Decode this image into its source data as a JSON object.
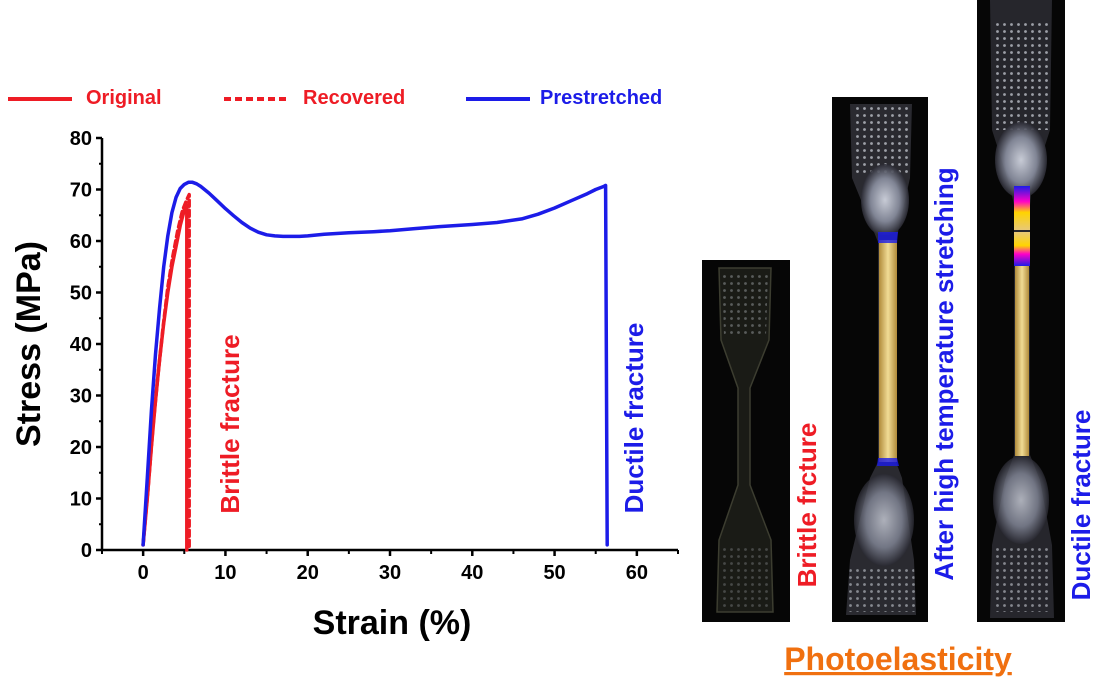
{
  "colors": {
    "original": "#ee1c25",
    "recovered": "#ee1c25",
    "prestretched": "#1c1ce8",
    "photo_caption": "#f07010",
    "photo_bg": "#060606"
  },
  "chart_data": {
    "type": "line",
    "xlabel": "Strain (%)",
    "ylabel": "Stress (MPa)",
    "xlim": [
      -5,
      65
    ],
    "ylim": [
      0,
      80
    ],
    "xticks": [
      0,
      10,
      20,
      30,
      40,
      50,
      60
    ],
    "yticks": [
      0,
      10,
      20,
      30,
      40,
      50,
      60,
      70,
      80
    ],
    "legend_position": "top",
    "series": [
      {
        "name": "Original",
        "style": "solid",
        "x": [
          0,
          0.5,
          1,
          1.5,
          2,
          2.5,
          3,
          3.5,
          4,
          4.5,
          5,
          5.3,
          5.3
        ],
        "y": [
          1,
          10,
          20,
          29,
          37,
          44,
          50,
          55,
          59,
          63,
          66,
          67,
          0
        ]
      },
      {
        "name": "Recovered",
        "style": "dashed",
        "x": [
          0,
          0.6,
          1.2,
          1.8,
          2.4,
          3,
          3.6,
          4.2,
          4.8,
          5.3,
          5.6,
          5.6
        ],
        "y": [
          1,
          12,
          24,
          34,
          43,
          51,
          57,
          62,
          66,
          68,
          69,
          0
        ]
      },
      {
        "name": "Prestretched",
        "style": "solid",
        "x": [
          0,
          0.5,
          1,
          1.5,
          2,
          2.5,
          3,
          3.5,
          4,
          4.5,
          5,
          5.5,
          6,
          6.5,
          7,
          8,
          9,
          10,
          11,
          12,
          13,
          14,
          15,
          16,
          17,
          18,
          19,
          20,
          22,
          25,
          28,
          30,
          33,
          36,
          40,
          43,
          46,
          48,
          50,
          52,
          54,
          55,
          56,
          56.2,
          56.4
        ],
        "y": [
          1,
          14,
          27,
          38,
          47,
          55,
          61,
          65.5,
          68.5,
          70.2,
          71,
          71.4,
          71.4,
          71.1,
          70.6,
          69.3,
          67.8,
          66.3,
          64.9,
          63.6,
          62.5,
          61.7,
          61.2,
          61,
          60.9,
          60.9,
          60.9,
          61,
          61.3,
          61.6,
          61.8,
          62,
          62.4,
          62.8,
          63.2,
          63.6,
          64.3,
          65.2,
          66.4,
          67.8,
          69.2,
          70,
          70.6,
          70.8,
          1
        ]
      }
    ],
    "annotations": [
      {
        "text": "Brittle fracture",
        "color": "#ee1c25"
      },
      {
        "text": "Ductile fracture",
        "color": "#1c1ce8"
      }
    ]
  },
  "photos": {
    "caption": "Photoelasticity",
    "items": [
      {
        "label": "Brittle frcture",
        "label_color": "#ee1c25"
      },
      {
        "label": "After high temperature stretching",
        "label_color": "#1c1ce8"
      },
      {
        "label": "Ductile fracture",
        "label_color": "#1c1ce8"
      }
    ]
  }
}
